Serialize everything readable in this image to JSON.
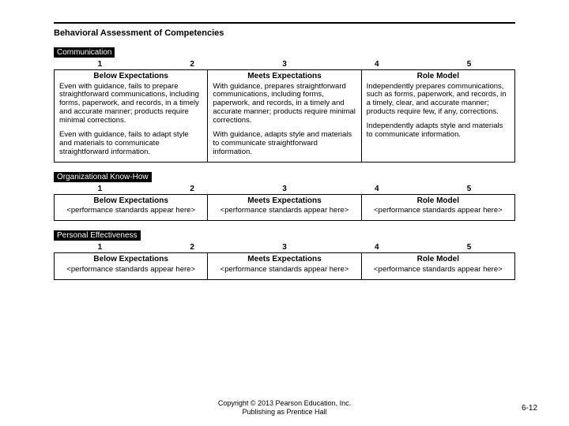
{
  "title": "Behavioral Assessment of Competencies",
  "scale": [
    "1",
    "2",
    "3",
    "4",
    "5"
  ],
  "levels": {
    "below": "Below Expectations",
    "meets": "Meets Expectations",
    "role": "Role Model"
  },
  "placeholder": "<performance standards appear here>",
  "sections": {
    "communication": {
      "label": "Communication",
      "below_p1": "Even with guidance, fails to prepare straightforward communications, including forms, paperwork, and records, in a timely and accurate manner; products require minimal corrections.",
      "below_p2": "Even with guidance, fails to adapt style and materials to communicate straightforward information.",
      "meets_p1": "With guidance, prepares straightforward communications, including forms, paperwork, and records, in a timely and accurate manner; products require minimal corrections.",
      "meets_p2": "With guidance, adapts style and materials to communicate straightforward information.",
      "role_p1": "Independently prepares communications, such as forms, paperwork, and records, in a timely, clear, and accurate manner; products require few, if any, corrections.",
      "role_p2": "Independently adapts style and materials to communicate information."
    },
    "orgknowhow": {
      "label": "Organizational Know-How"
    },
    "personal": {
      "label": "Personal Effectiveness"
    }
  },
  "footer": {
    "line1": "Copyright © 2013 Pearson Education, Inc.",
    "line2": "Publishing as Prentice Hall",
    "pagenum": "6-12"
  }
}
